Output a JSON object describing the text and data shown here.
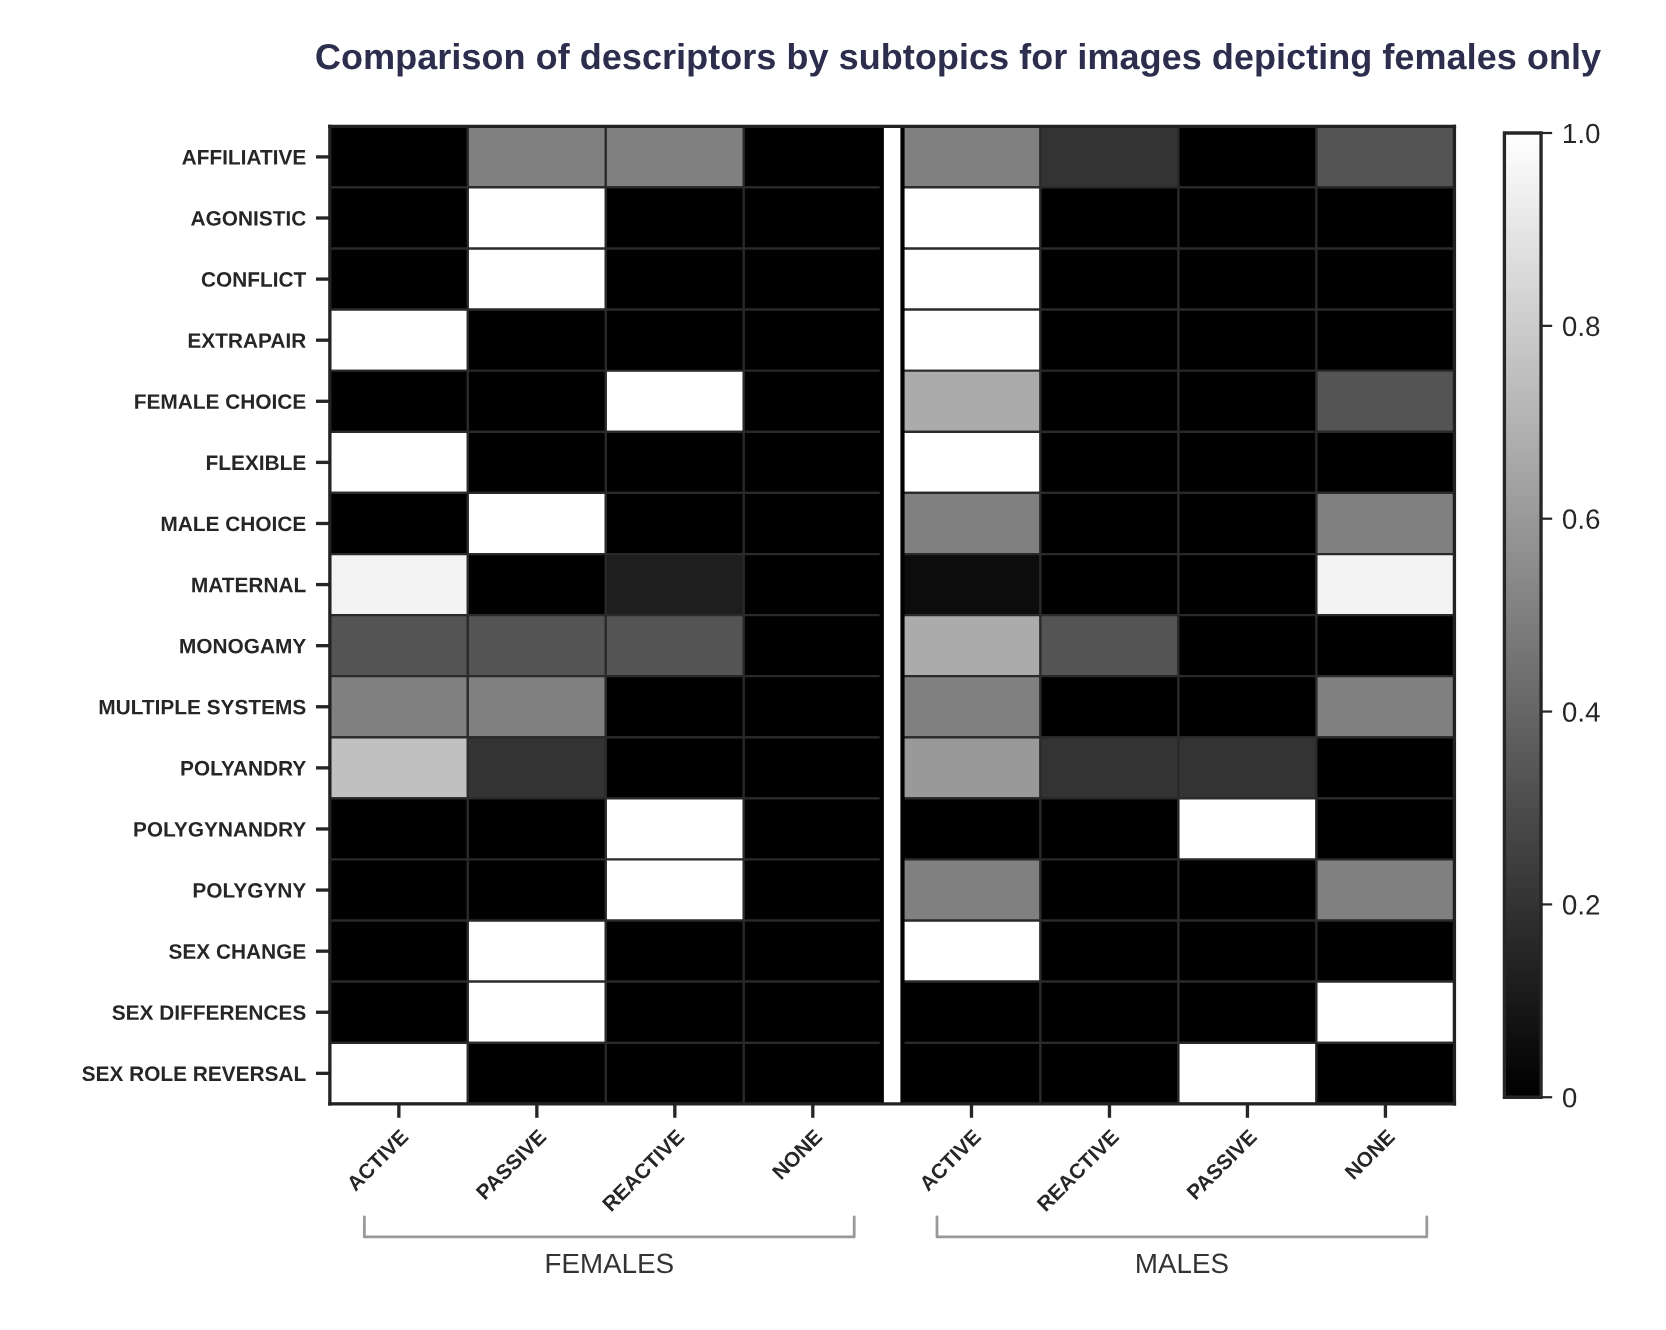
{
  "chart_data": {
    "type": "heatmap",
    "title": "Comparison of descriptors by subtopics for images depicting females only",
    "categories": [
      "ACTIVE",
      "PASSIVE",
      "REACTIVE",
      "NONE",
      "ACTIVE",
      "REACTIVE",
      "PASSIVE",
      "NONE"
    ],
    "y_categories": [
      "AFFILIATIVE",
      "AGONISTIC",
      "CONFLICT",
      "EXTRAPAIR",
      "FEMALE CHOICE",
      "FLEXIBLE",
      "MALE CHOICE",
      "MATERNAL",
      "MONOGAMY",
      "MULTIPLE SYSTEMS",
      "POLYANDRY",
      "POLYGYNANDRY",
      "POLYGYNY",
      "SEX CHANGE",
      "SEX DIFFERENCES",
      "SEX ROLE REVERSAL"
    ],
    "cells": [
      [
        0,
        0.5,
        0.5,
        0,
        0.5,
        0.2,
        0,
        0.33
      ],
      [
        0,
        1,
        0,
        0,
        1,
        0,
        0,
        0
      ],
      [
        0,
        1,
        0,
        0,
        1,
        0,
        0,
        0
      ],
      [
        1,
        0,
        0,
        0,
        1,
        0,
        0,
        0
      ],
      [
        0,
        0,
        1,
        0,
        0.67,
        0,
        0,
        0.33
      ],
      [
        1,
        0,
        0,
        0,
        1,
        0,
        0,
        0
      ],
      [
        0,
        1,
        0,
        0,
        0.5,
        0,
        0,
        0.5
      ],
      [
        0.95,
        0,
        0.12,
        0,
        0.05,
        0,
        0,
        0.95
      ],
      [
        0.33,
        0.33,
        0.33,
        0,
        0.67,
        0.33,
        0,
        0
      ],
      [
        0.5,
        0.5,
        0,
        0,
        0.5,
        0,
        0,
        0.5
      ],
      [
        0.75,
        0.2,
        0,
        0,
        0.6,
        0.2,
        0.2,
        0
      ],
      [
        0,
        0,
        1,
        0,
        0,
        0,
        1,
        0
      ],
      [
        0,
        0,
        1,
        0,
        0.5,
        0,
        0,
        0.5
      ],
      [
        0,
        1,
        0,
        0,
        1,
        0,
        0,
        0
      ],
      [
        0,
        1,
        0,
        0,
        0,
        0,
        0,
        1
      ],
      [
        1,
        0,
        0,
        0,
        0,
        0,
        1,
        0
      ]
    ],
    "clim": [
      0,
      1
    ],
    "cticks": [
      {
        "value": 0,
        "label": "0"
      },
      0.2,
      0.4,
      0.6,
      0.8,
      {
        "value": 1,
        "label": "1.0"
      }
    ],
    "annotations": [
      "FEMALES",
      "MALES"
    ]
  }
}
